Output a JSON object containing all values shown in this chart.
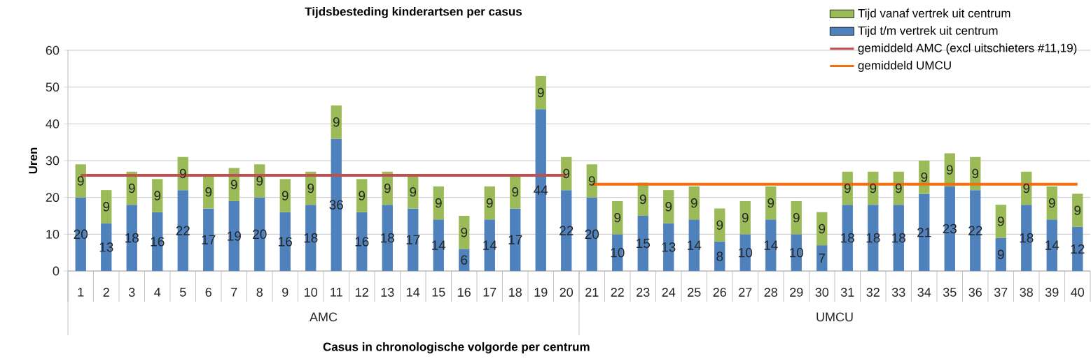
{
  "chart_data": {
    "type": "bar",
    "stacked": true,
    "title": "Tijdsbesteding kinderartsen per casus",
    "xlabel": "Casus in chronologische volgorde per centrum",
    "ylabel": "Uren",
    "categories": [
      "1",
      "2",
      "3",
      "4",
      "5",
      "6",
      "7",
      "8",
      "9",
      "10",
      "11",
      "12",
      "13",
      "14",
      "15",
      "16",
      "17",
      "18",
      "19",
      "20",
      "21",
      "22",
      "23",
      "24",
      "25",
      "26",
      "27",
      "28",
      "29",
      "30",
      "31",
      "32",
      "33",
      "34",
      "35",
      "36",
      "37",
      "38",
      "39",
      "40"
    ],
    "series": [
      {
        "name": "Tijd t/m vertrek uit centrum",
        "color": "#4f81bd",
        "values": [
          20,
          13,
          18,
          16,
          22,
          17,
          19,
          20,
          16,
          18,
          36,
          16,
          18,
          17,
          14,
          6,
          14,
          17,
          44,
          22,
          20,
          10,
          15,
          13,
          14,
          8,
          10,
          14,
          10,
          7,
          18,
          18,
          18,
          21,
          23,
          22,
          9,
          18,
          14,
          12
        ],
        "value_labels": [
          "20",
          "13",
          "18",
          "16",
          "22",
          "17",
          "19",
          "20",
          "16",
          "18",
          "36",
          "16",
          "18",
          "17",
          "14",
          "6",
          "14",
          "17",
          "44",
          "22",
          "20",
          "10",
          "15",
          "13",
          "14",
          "8",
          "10",
          "14",
          "10",
          "7",
          "18",
          "18",
          "18",
          "21",
          "23",
          "22",
          "9",
          "18",
          "14",
          "12"
        ]
      },
      {
        "name": "Tijd vanaf vertrek uit centrum",
        "color": "#9bbb59",
        "values": [
          9,
          9,
          9,
          9,
          9,
          9,
          9,
          9,
          9,
          9,
          9,
          9,
          9,
          9,
          9,
          9,
          9,
          9,
          9,
          9,
          9,
          9,
          9,
          9,
          9,
          9,
          9,
          9,
          9,
          9,
          9,
          9,
          9,
          9,
          9,
          9,
          9,
          9,
          9,
          9
        ],
        "value_labels": [
          "9",
          "9",
          "9",
          "9",
          "9",
          "9",
          "9",
          "9",
          "9",
          "9",
          "9",
          "9",
          "9",
          "9",
          "9",
          "9",
          "9",
          "9",
          "9",
          "9",
          "9",
          "9",
          "9",
          "9",
          "9",
          "9",
          "9",
          "9",
          "9",
          "9",
          "9",
          "9",
          "9",
          "9",
          "9",
          "9",
          "9",
          "9",
          "9",
          "9"
        ]
      },
      {
        "name": "gemiddeld AMC (excl uitschieters #11,19)",
        "type": "line",
        "color": "#c0504d",
        "x": [
          "1",
          "20"
        ],
        "values": [
          26,
          26
        ]
      },
      {
        "name": "gemiddeld UMCU",
        "type": "line",
        "color": "#f07010",
        "x": [
          "21",
          "40"
        ],
        "values": [
          23.6,
          23.6
        ]
      }
    ],
    "annotations": [
      "AMC",
      "UMCU"
    ],
    "ylim": [
      0,
      60
    ],
    "yticks": [
      0,
      10,
      20,
      30,
      40,
      50,
      60
    ],
    "grid": "y",
    "legend": "top right"
  }
}
